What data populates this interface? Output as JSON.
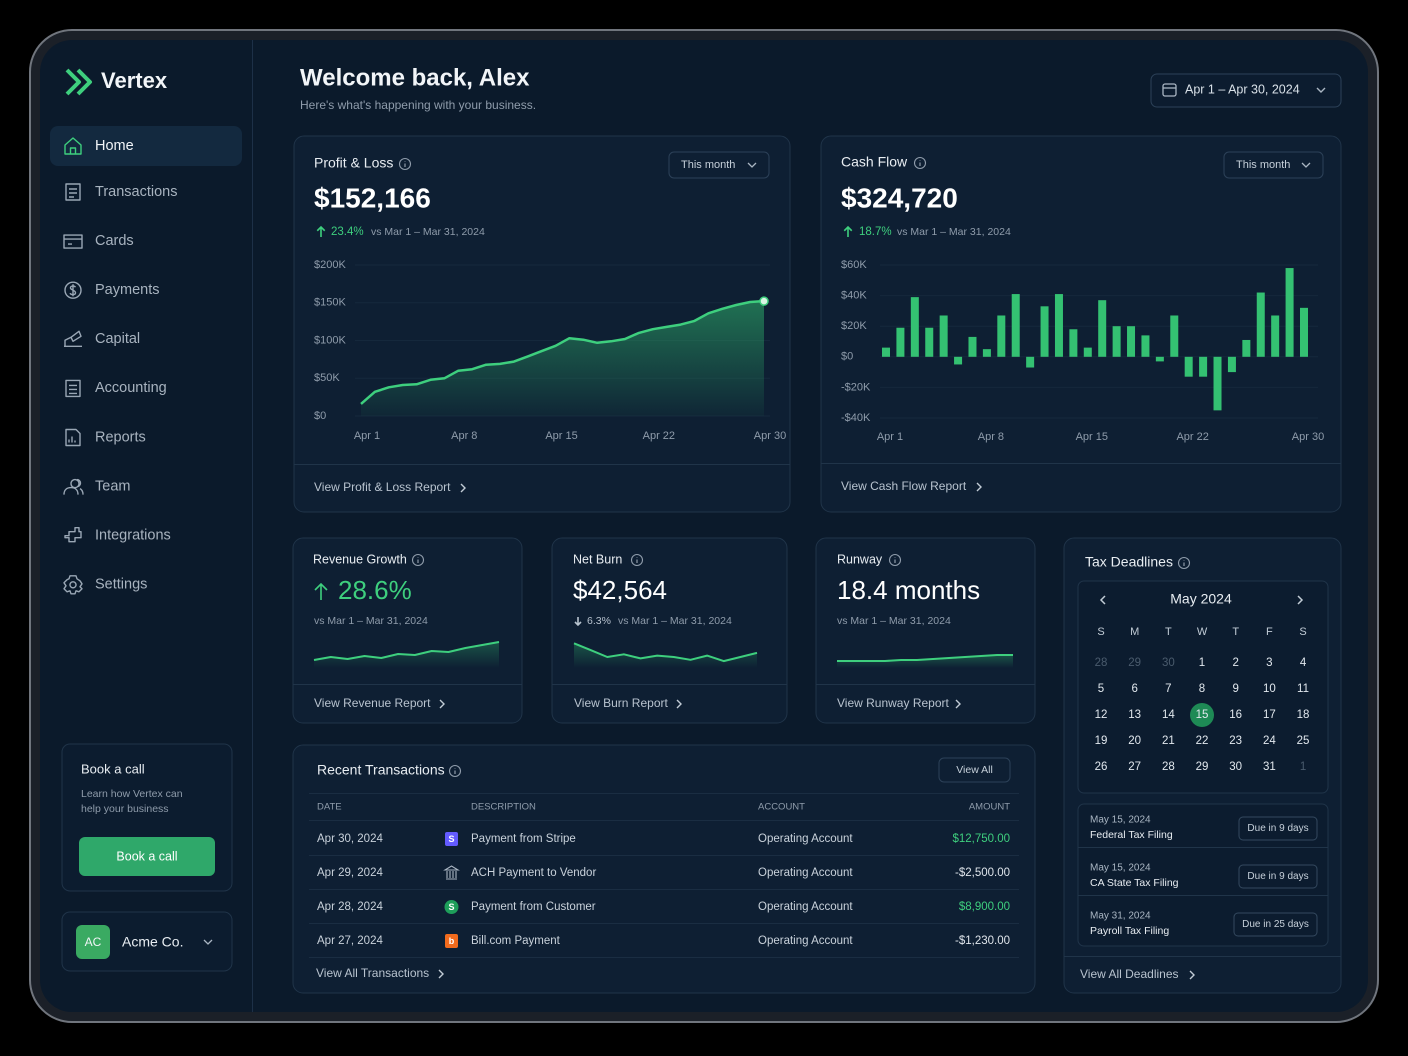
{
  "sidebar": {
    "brand": "Vertex",
    "nav": [
      "Home",
      "Transactions",
      "Cards",
      "Payments",
      "Capital",
      "Accounting",
      "Reports",
      "Team",
      "Integrations",
      "Settings"
    ],
    "active": 0,
    "book_call": {
      "title": "Book a call",
      "text": [
        "Learn how Vertex can",
        "help your business"
      ],
      "button": "Book a call"
    },
    "account": {
      "initials": "AC",
      "name": "Acme Co."
    }
  },
  "header": {
    "title": "Welcome back, Alex",
    "subtitle": "Here's what's happening with your business.",
    "date_range": "Apr 1 – Apr 30, 2024"
  },
  "chart_data": [
    {
      "type": "line",
      "title": "Profit & Loss",
      "period": "This month",
      "value": "$152,166",
      "change": "23.4%",
      "comparison": "vs Mar 1 – Mar 31, 2024",
      "link": "View Profit & Loss Report",
      "categories": [
        "Apr 1",
        null,
        null,
        null,
        null,
        null,
        null,
        "Apr 8",
        null,
        null,
        null,
        null,
        null,
        null,
        "Apr 15",
        null,
        null,
        null,
        null,
        null,
        null,
        "Apr 22",
        null,
        null,
        null,
        null,
        null,
        null,
        null,
        "Apr 30"
      ],
      "values": [
        16000,
        32000,
        38000,
        41000,
        42000,
        48000,
        50000,
        60000,
        62000,
        68000,
        69000,
        72000,
        79000,
        86000,
        93000,
        103000,
        101000,
        97000,
        99000,
        102000,
        110000,
        115000,
        118000,
        121000,
        126000,
        136000,
        142000,
        147000,
        151000,
        152166
      ],
      "color": "#3ecf7e",
      "ylim": [
        0,
        200000
      ],
      "yticks": [
        {
          "value": 0,
          "label": "$0"
        },
        {
          "value": 50000,
          "label": "$50K"
        },
        {
          "value": 100000,
          "label": "$100K"
        },
        {
          "value": 150000,
          "label": "$150K"
        },
        {
          "value": 200000,
          "label": "$200K"
        }
      ],
      "grid": true
    },
    {
      "type": "bar",
      "title": "Cash Flow",
      "period": "This month",
      "value": "$324,720",
      "change": "18.7%",
      "comparison": "vs Mar 1 – Mar 31, 2024",
      "link": "View Cash Flow Report",
      "categories": [
        "Apr 1",
        null,
        null,
        null,
        null,
        null,
        null,
        "Apr 8",
        null,
        null,
        null,
        null,
        null,
        null,
        "Apr 15",
        null,
        null,
        null,
        null,
        null,
        null,
        "Apr 22",
        null,
        null,
        null,
        null,
        null,
        null,
        null,
        "Apr 30"
      ],
      "values": [
        6000,
        19000,
        39000,
        19000,
        27000,
        -5000,
        13000,
        5000,
        27000,
        41000,
        -7000,
        33000,
        41000,
        18000,
        6000,
        37000,
        20000,
        20000,
        14000,
        -3000,
        27000,
        -13000,
        -13000,
        -35000,
        -10000,
        11000,
        42000,
        27000,
        58000,
        32000
      ],
      "color": "#34c172",
      "ylim": [
        -40000,
        60000
      ],
      "yticks": [
        {
          "value": -40000,
          "label": "-$40K"
        },
        {
          "value": -20000,
          "label": "-$20K"
        },
        {
          "value": 0,
          "label": "$0"
        },
        {
          "value": 20000,
          "label": "$20K"
        },
        {
          "value": 40000,
          "label": "$40K"
        },
        {
          "value": 60000,
          "label": "$60K"
        }
      ],
      "grid": true
    },
    {
      "type": "sparkline",
      "title": "Revenue Growth",
      "value": "28.6%",
      "comparison": "vs Mar 1 – Mar 31, 2024",
      "link": "View Revenue Report",
      "values": [
        100,
        103,
        101,
        104,
        102,
        106,
        105,
        109,
        108,
        112,
        115,
        118
      ],
      "color": "#3ecf7e",
      "ylim": [
        92,
        125
      ]
    },
    {
      "type": "sparkline",
      "title": "Net Burn",
      "value": "$42,564",
      "change": "6.3%",
      "comparison": "vs Mar 1 – Mar 31, 2024",
      "link": "View Burn Report",
      "values": [
        60,
        55,
        50,
        52,
        49,
        51,
        50,
        48,
        51,
        47,
        50,
        53
      ],
      "color": "#3ecf7e",
      "ylim": [
        42,
        66
      ]
    },
    {
      "type": "sparkline",
      "title": "Runway",
      "value": "18.4 months",
      "comparison": "vs Mar 1 – Mar 31, 2024",
      "link": "View Runway Report",
      "values": [
        17.8,
        17.8,
        17.8,
        17.8,
        17.9,
        17.9,
        18.0,
        18.1,
        18.2,
        18.3,
        18.4,
        18.4
      ],
      "color": "#3ecf7e",
      "ylim": [
        17.1,
        20.4
      ]
    }
  ],
  "transactions": {
    "title": "Recent Transactions",
    "button": "View All",
    "columns": [
      "DATE",
      "DESCRIPTION",
      "ACCOUNT",
      "AMOUNT"
    ],
    "rows": [
      {
        "date": "Apr 30, 2024",
        "icon": "S",
        "description": "Payment from Stripe",
        "account": "Operating Account",
        "amount": "$12,750.00"
      },
      {
        "date": "Apr 29, 2024",
        "description": "ACH Payment to Vendor",
        "account": "Operating Account",
        "amount": "-$2,500.00"
      },
      {
        "date": "Apr 28, 2024",
        "icon": "S",
        "description": "Payment from Customer",
        "account": "Operating Account",
        "amount": "$8,900.00"
      },
      {
        "date": "Apr 27, 2024",
        "icon": "b",
        "description": "Bill.com Payment",
        "account": "Operating Account",
        "amount": "-$1,230.00"
      }
    ],
    "link": "View All Transactions"
  },
  "tax": {
    "title": "Tax Deadlines",
    "month": "May 2024",
    "weekdays": [
      "S",
      "M",
      "T",
      "W",
      "T",
      "F",
      "S"
    ],
    "weeks": [
      [
        28,
        29,
        30,
        1,
        2,
        3,
        4
      ],
      [
        5,
        6,
        7,
        8,
        9,
        10,
        11
      ],
      [
        12,
        13,
        14,
        15,
        16,
        17,
        18
      ],
      [
        19,
        20,
        21,
        22,
        23,
        24,
        25
      ],
      [
        26,
        27,
        28,
        29,
        30,
        31,
        1
      ]
    ],
    "selected": 15,
    "deadlines": [
      {
        "date": "May 15, 2024",
        "name": "Federal Tax Filing",
        "due": "Due in 9 days"
      },
      {
        "date": "May 15, 2024",
        "name": "CA State Tax Filing",
        "due": "Due in 9 days"
      },
      {
        "date": "May 31, 2024",
        "name": "Payroll Tax Filing",
        "due": "Due in 25 days"
      }
    ],
    "link": "View All Deadlines"
  }
}
